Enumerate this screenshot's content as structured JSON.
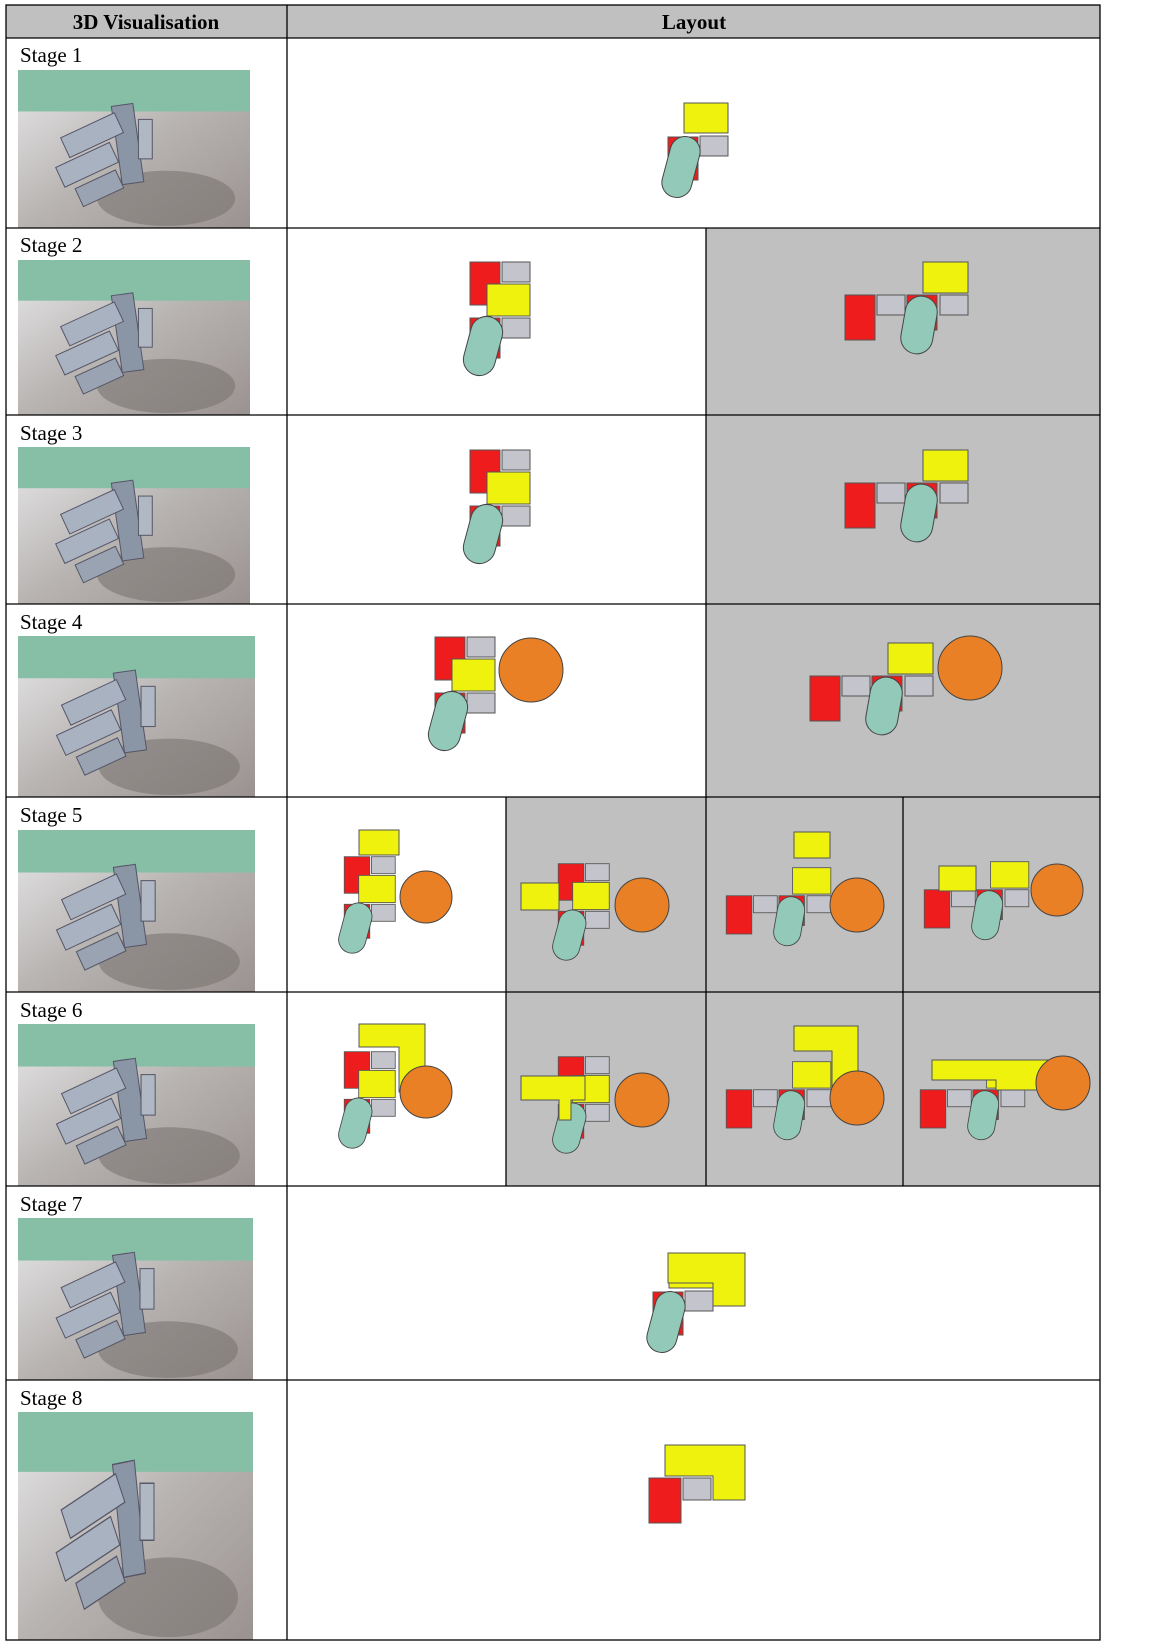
{
  "header": {
    "columns": [
      "3D Visualisation",
      "Layout"
    ]
  },
  "rows": [
    {
      "label": "Stage 1"
    },
    {
      "label": "Stage 2"
    },
    {
      "label": "Stage 3"
    },
    {
      "label": "Stage 4"
    },
    {
      "label": "Stage 5"
    },
    {
      "label": "Stage 6"
    },
    {
      "label": "Stage 7"
    },
    {
      "label": "Stage 8"
    }
  ]
}
